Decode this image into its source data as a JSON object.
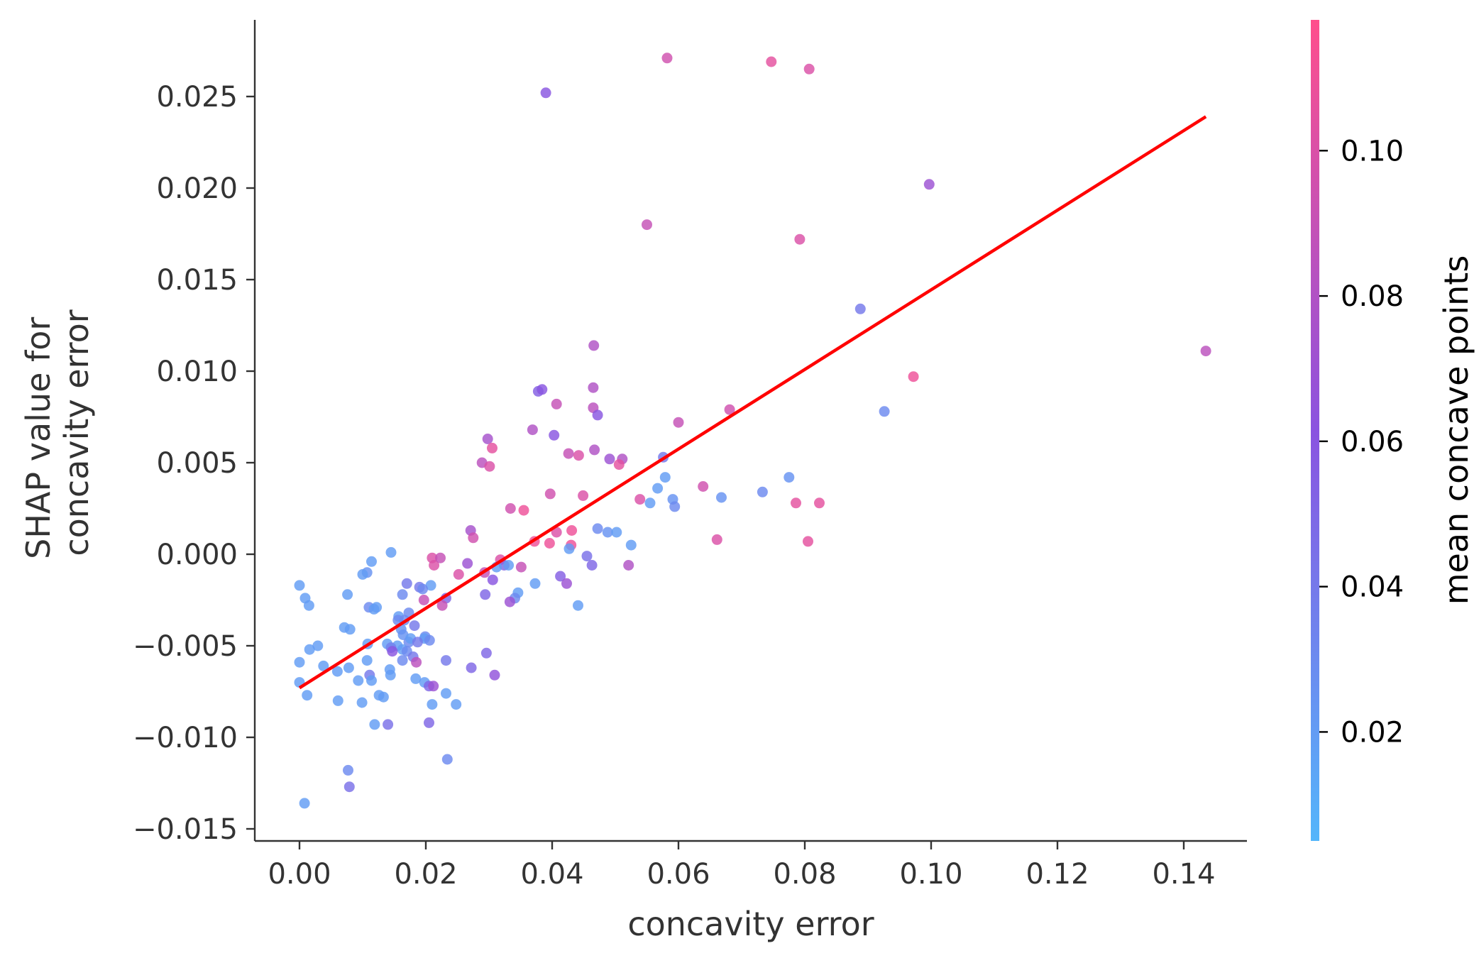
{
  "chart_data": {
    "type": "scatter",
    "xlabel": "concavity error",
    "ylabel_lines": [
      "SHAP value for",
      "concavity error"
    ],
    "xlim": [
      -0.007,
      0.151
    ],
    "ylim": [
      -0.0156,
      0.0292
    ],
    "x_ticks": [
      0.0,
      0.02,
      0.04,
      0.06,
      0.08,
      0.1,
      0.12,
      0.14
    ],
    "x_tick_labels": [
      "0.00",
      "0.02",
      "0.04",
      "0.06",
      "0.08",
      "0.10",
      "0.12",
      "0.14"
    ],
    "y_ticks": [
      -0.015,
      -0.01,
      -0.005,
      0.0,
      0.005,
      0.01,
      0.015,
      0.02,
      0.025
    ],
    "y_tick_labels": [
      "−0.015",
      "−0.010",
      "−0.005",
      "0.000",
      "0.005",
      "0.010",
      "0.015",
      "0.020",
      "0.025"
    ],
    "colorbar": {
      "label": "mean concave points",
      "range": [
        0.005,
        0.118
      ],
      "ticks": [
        0.02,
        0.04,
        0.06,
        0.08,
        0.1
      ],
      "tick_labels": [
        "0.02",
        "0.04",
        "0.06",
        "0.08",
        "0.10"
      ],
      "color_low": "#54b6fb",
      "color_mid": "#8a53e0",
      "color_high": "#ff4f8c"
    },
    "trend_line": {
      "color": "#ff0000",
      "points": [
        [
          0.0,
          -0.0073
        ],
        [
          0.1435,
          0.0239
        ]
      ]
    },
    "points": [
      [
        0.0582,
        0.0271,
        0.095
      ],
      [
        0.0747,
        0.0269,
        0.105
      ],
      [
        0.0807,
        0.0265,
        0.1
      ],
      [
        0.039,
        0.0252,
        0.06
      ],
      [
        0.0997,
        0.0202,
        0.07
      ],
      [
        0.055,
        0.018,
        0.09
      ],
      [
        0.0792,
        0.0172,
        0.1
      ],
      [
        0.0888,
        0.0134,
        0.04
      ],
      [
        0.1435,
        0.0111,
        0.085
      ],
      [
        0.0466,
        0.0114,
        0.08
      ],
      [
        0.0972,
        0.0097,
        0.11
      ],
      [
        0.0378,
        0.0089,
        0.055
      ],
      [
        0.0384,
        0.009,
        0.06
      ],
      [
        0.0465,
        0.0091,
        0.08
      ],
      [
        0.0407,
        0.0082,
        0.09
      ],
      [
        0.0465,
        0.008,
        0.085
      ],
      [
        0.0472,
        0.0076,
        0.06
      ],
      [
        0.0681,
        0.0079,
        0.095
      ],
      [
        0.0926,
        0.0078,
        0.03
      ],
      [
        0.06,
        0.0072,
        0.09
      ],
      [
        0.0369,
        0.0068,
        0.08
      ],
      [
        0.0403,
        0.0065,
        0.06
      ],
      [
        0.0298,
        0.0063,
        0.075
      ],
      [
        0.0305,
        0.0058,
        0.105
      ],
      [
        0.0467,
        0.0057,
        0.08
      ],
      [
        0.0426,
        0.0055,
        0.09
      ],
      [
        0.0442,
        0.0054,
        0.1
      ],
      [
        0.0491,
        0.0052,
        0.07
      ],
      [
        0.0511,
        0.0052,
        0.08
      ],
      [
        0.0576,
        0.0053,
        0.04
      ],
      [
        0.0289,
        0.005,
        0.085
      ],
      [
        0.0301,
        0.0048,
        0.1
      ],
      [
        0.0506,
        0.0049,
        0.105
      ],
      [
        0.0579,
        0.0042,
        0.02
      ],
      [
        0.0775,
        0.0042,
        0.025
      ],
      [
        0.0639,
        0.0037,
        0.095
      ],
      [
        0.0567,
        0.0036,
        0.02
      ],
      [
        0.0733,
        0.0034,
        0.03
      ],
      [
        0.0397,
        0.0033,
        0.095
      ],
      [
        0.0449,
        0.0032,
        0.1
      ],
      [
        0.0591,
        0.003,
        0.025
      ],
      [
        0.0539,
        0.003,
        0.1
      ],
      [
        0.0668,
        0.0031,
        0.025
      ],
      [
        0.0555,
        0.0028,
        0.02
      ],
      [
        0.0786,
        0.0028,
        0.105
      ],
      [
        0.0823,
        0.0028,
        0.105
      ],
      [
        0.0594,
        0.0026,
        0.03
      ],
      [
        0.0334,
        0.0025,
        0.095
      ],
      [
        0.0355,
        0.0024,
        0.11
      ],
      [
        0.0472,
        0.0014,
        0.03
      ],
      [
        0.0488,
        0.0012,
        0.025
      ],
      [
        0.0502,
        0.0012,
        0.02
      ],
      [
        0.0407,
        0.0012,
        0.1
      ],
      [
        0.0431,
        0.0013,
        0.11
      ],
      [
        0.0271,
        0.0013,
        0.075
      ],
      [
        0.0275,
        0.0009,
        0.095
      ],
      [
        0.0372,
        0.0007,
        0.11
      ],
      [
        0.0396,
        0.0006,
        0.11
      ],
      [
        0.043,
        0.0005,
        0.11
      ],
      [
        0.0427,
        0.0003,
        0.02
      ],
      [
        0.0525,
        0.0005,
        0.02
      ],
      [
        0.0661,
        0.0008,
        0.1
      ],
      [
        0.0805,
        0.0007,
        0.105
      ],
      [
        0.0145,
        0.0001,
        0.02
      ],
      [
        0.021,
        -0.0002,
        0.1
      ],
      [
        0.0213,
        -0.0006,
        0.1
      ],
      [
        0.0223,
        -0.0002,
        0.09
      ],
      [
        0.0266,
        -0.0005,
        0.07
      ],
      [
        0.0455,
        -0.0001,
        0.045
      ],
      [
        0.0463,
        -0.0006,
        0.05
      ],
      [
        0.0318,
        -0.0003,
        0.1
      ],
      [
        0.0324,
        -0.0006,
        0.05
      ],
      [
        0.0312,
        -0.0007,
        0.02
      ],
      [
        0.0331,
        -0.0006,
        0.02
      ],
      [
        0.0351,
        -0.0007,
        0.09
      ],
      [
        0.0521,
        -0.0006,
        0.08
      ],
      [
        0.0114,
        -0.0004,
        0.02
      ],
      [
        0.0252,
        -0.0011,
        0.1
      ],
      [
        0.0293,
        -0.001,
        0.09
      ],
      [
        0.0107,
        -0.001,
        0.025
      ],
      [
        0.01,
        -0.0011,
        0.02
      ],
      [
        0.0413,
        -0.0012,
        0.055
      ],
      [
        0.0306,
        -0.0014,
        0.06
      ],
      [
        0.0423,
        -0.0016,
        0.07
      ],
      [
        0.017,
        -0.0016,
        0.04
      ],
      [
        0.0208,
        -0.0017,
        0.02
      ],
      [
        0.0373,
        -0.0016,
        0.02
      ],
      [
        0.0,
        -0.0017,
        0.02
      ],
      [
        0.019,
        -0.0018,
        0.04
      ],
      [
        0.0195,
        -0.0019,
        0.03
      ],
      [
        0.0163,
        -0.0022,
        0.03
      ],
      [
        0.0076,
        -0.0022,
        0.02
      ],
      [
        0.0346,
        -0.0021,
        0.02
      ],
      [
        0.0341,
        -0.0024,
        0.03
      ],
      [
        0.0294,
        -0.0022,
        0.05
      ],
      [
        0.0232,
        -0.0024,
        0.05
      ],
      [
        0.0009,
        -0.0024,
        0.02
      ],
      [
        0.0197,
        -0.0025,
        0.09
      ],
      [
        0.0333,
        -0.0026,
        0.07
      ],
      [
        0.0226,
        -0.0028,
        0.09
      ],
      [
        0.0441,
        -0.0028,
        0.02
      ],
      [
        0.0015,
        -0.0028,
        0.02
      ],
      [
        0.011,
        -0.0029,
        0.03
      ],
      [
        0.0122,
        -0.0029,
        0.02
      ],
      [
        0.0118,
        -0.003,
        0.02
      ],
      [
        0.0173,
        -0.0032,
        0.03
      ],
      [
        0.0157,
        -0.0034,
        0.02
      ],
      [
        0.0156,
        -0.0036,
        0.03
      ],
      [
        0.0166,
        -0.0036,
        0.03
      ],
      [
        0.0071,
        -0.004,
        0.02
      ],
      [
        0.0161,
        -0.0041,
        0.025
      ],
      [
        0.008,
        -0.0041,
        0.02
      ],
      [
        0.0182,
        -0.0039,
        0.04
      ],
      [
        0.0164,
        -0.0044,
        0.025
      ],
      [
        0.0199,
        -0.0045,
        0.03
      ],
      [
        0.0198,
        -0.0046,
        0.02
      ],
      [
        0.0173,
        -0.0048,
        0.03
      ],
      [
        0.0176,
        -0.0046,
        0.02
      ],
      [
        0.0187,
        -0.0048,
        0.04
      ],
      [
        0.0206,
        -0.0047,
        0.03
      ],
      [
        0.0139,
        -0.0049,
        0.02
      ],
      [
        0.0108,
        -0.0049,
        0.02
      ],
      [
        0.0155,
        -0.005,
        0.02
      ],
      [
        0.0163,
        -0.0052,
        0.02
      ],
      [
        0.0029,
        -0.005,
        0.02
      ],
      [
        0.0016,
        -0.0052,
        0.02
      ],
      [
        0.0145,
        -0.0051,
        0.035
      ],
      [
        0.0147,
        -0.0053,
        0.06
      ],
      [
        0.017,
        -0.0053,
        0.03
      ],
      [
        0.018,
        -0.0056,
        0.04
      ],
      [
        0.0296,
        -0.0054,
        0.05
      ],
      [
        0.0107,
        -0.0058,
        0.02
      ],
      [
        0.0,
        -0.0059,
        0.02
      ],
      [
        0.0163,
        -0.0058,
        0.03
      ],
      [
        0.0185,
        -0.0059,
        0.085
      ],
      [
        0.0232,
        -0.0058,
        0.04
      ],
      [
        0.0038,
        -0.0061,
        0.02
      ],
      [
        0.0078,
        -0.0062,
        0.02
      ],
      [
        0.0143,
        -0.0063,
        0.02
      ],
      [
        0.0272,
        -0.0062,
        0.05
      ],
      [
        0.006,
        -0.0064,
        0.02
      ],
      [
        0.0144,
        -0.0066,
        0.02
      ],
      [
        0.0111,
        -0.0066,
        0.04
      ],
      [
        0.0309,
        -0.0066,
        0.065
      ],
      [
        0.0184,
        -0.0068,
        0.02
      ],
      [
        0.0093,
        -0.0069,
        0.02
      ],
      [
        0.0114,
        -0.0069,
        0.02
      ],
      [
        0.0198,
        -0.007,
        0.02
      ],
      [
        0.0205,
        -0.0072,
        0.05
      ],
      [
        0.0212,
        -0.0072,
        0.07
      ],
      [
        0.0,
        -0.007,
        0.02
      ],
      [
        0.0232,
        -0.0076,
        0.02
      ],
      [
        0.0012,
        -0.0077,
        0.02
      ],
      [
        0.0126,
        -0.0077,
        0.02
      ],
      [
        0.0133,
        -0.0078,
        0.02
      ],
      [
        0.0061,
        -0.008,
        0.02
      ],
      [
        0.0099,
        -0.0081,
        0.02
      ],
      [
        0.021,
        -0.0082,
        0.02
      ],
      [
        0.0248,
        -0.0082,
        0.02
      ],
      [
        0.0205,
        -0.0092,
        0.05
      ],
      [
        0.0119,
        -0.0093,
        0.02
      ],
      [
        0.014,
        -0.0093,
        0.045
      ],
      [
        0.0234,
        -0.0112,
        0.03
      ],
      [
        0.0077,
        -0.0118,
        0.03
      ],
      [
        0.0079,
        -0.0127,
        0.045
      ],
      [
        0.0008,
        -0.0136,
        0.02
      ]
    ]
  }
}
